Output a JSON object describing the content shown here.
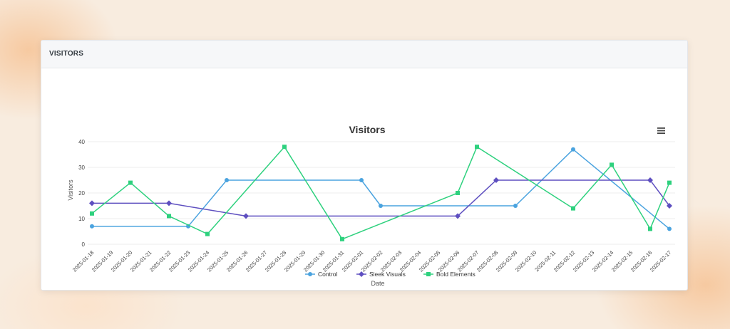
{
  "card": {
    "title": "VISITORS"
  },
  "chart_data": {
    "type": "line",
    "title": "Visitors",
    "xlabel": "Date",
    "ylabel": "Visitors",
    "ylim": [
      0,
      40
    ],
    "yticks": [
      0,
      10,
      20,
      30,
      40
    ],
    "grid": true,
    "legend_position": "bottom-center",
    "categories": [
      "2025-01-18",
      "2025-01-19",
      "2025-01-20",
      "2025-01-21",
      "2025-01-22",
      "2025-01-23",
      "2025-01-24",
      "2025-01-25",
      "2025-01-26",
      "2025-01-27",
      "2025-01-28",
      "2025-01-29",
      "2025-01-30",
      "2025-01-31",
      "2025-02-01",
      "2025-02-02",
      "2025-02-03",
      "2025-02-04",
      "2025-02-05",
      "2025-02-06",
      "2025-02-07",
      "2025-02-08",
      "2025-02-09",
      "2025-02-10",
      "2025-02-11",
      "2025-02-12",
      "2025-02-13",
      "2025-02-14",
      "2025-02-15",
      "2025-02-16",
      "2025-02-17"
    ],
    "series": [
      {
        "name": "Control",
        "color": "#4aa3df",
        "marker": "circle",
        "points": [
          [
            "2025-01-18",
            7
          ],
          [
            "2025-01-23",
            7
          ],
          [
            "2025-01-25",
            25
          ],
          [
            "2025-02-01",
            25
          ],
          [
            "2025-02-02",
            15
          ],
          [
            "2025-02-09",
            15
          ],
          [
            "2025-02-12",
            37
          ],
          [
            "2025-02-17",
            6
          ]
        ]
      },
      {
        "name": "Sleek Visuals",
        "color": "#5e4fc0",
        "marker": "diamond",
        "points": [
          [
            "2025-01-18",
            16
          ],
          [
            "2025-01-22",
            16
          ],
          [
            "2025-01-26",
            11
          ],
          [
            "2025-02-06",
            11
          ],
          [
            "2025-02-08",
            25
          ],
          [
            "2025-02-16",
            25
          ],
          [
            "2025-02-17",
            15
          ]
        ]
      },
      {
        "name": "Bold Elements",
        "color": "#2ed17e",
        "marker": "square",
        "points": [
          [
            "2025-01-18",
            12
          ],
          [
            "2025-01-20",
            24
          ],
          [
            "2025-01-22",
            11
          ],
          [
            "2025-01-24",
            4
          ],
          [
            "2025-01-28",
            38
          ],
          [
            "2025-01-31",
            2
          ],
          [
            "2025-02-06",
            20
          ],
          [
            "2025-02-07",
            38
          ],
          [
            "2025-02-12",
            14
          ],
          [
            "2025-02-14",
            31
          ],
          [
            "2025-02-16",
            6
          ],
          [
            "2025-02-17",
            24
          ]
        ]
      }
    ]
  },
  "icons": {
    "menu": "hamburger-menu-icon"
  }
}
